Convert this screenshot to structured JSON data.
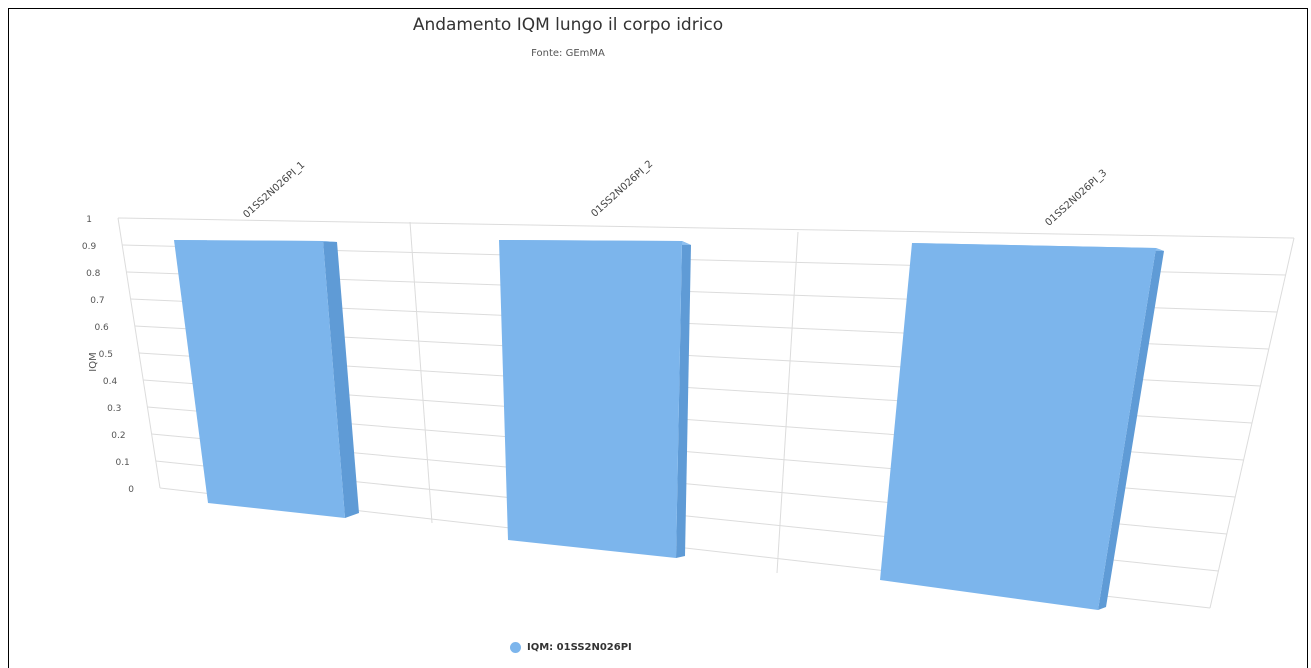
{
  "chart_data": {
    "type": "bar",
    "title": "Andamento IQM lungo il corpo idrico",
    "subtitle": "Fonte: GEmMA",
    "ylabel": "IQM",
    "xlabel": "",
    "ylim": [
      0,
      1
    ],
    "yticks": [
      "1",
      "0.9",
      "0.8",
      "0.7",
      "0.6",
      "0.5",
      "0.4",
      "0.3",
      "0.2",
      "0.1",
      "0"
    ],
    "categories": [
      "01SS2N026PI_1",
      "01SS2N026PI_2",
      "01SS2N026PI_3"
    ],
    "series": [
      {
        "name": "IQM: 01SS2N026PI",
        "values": [
          0.93,
          0.93,
          0.93
        ],
        "color": "#7cb5ec"
      }
    ],
    "legend_position": "bottom-center",
    "grid": true,
    "three_d": true
  }
}
